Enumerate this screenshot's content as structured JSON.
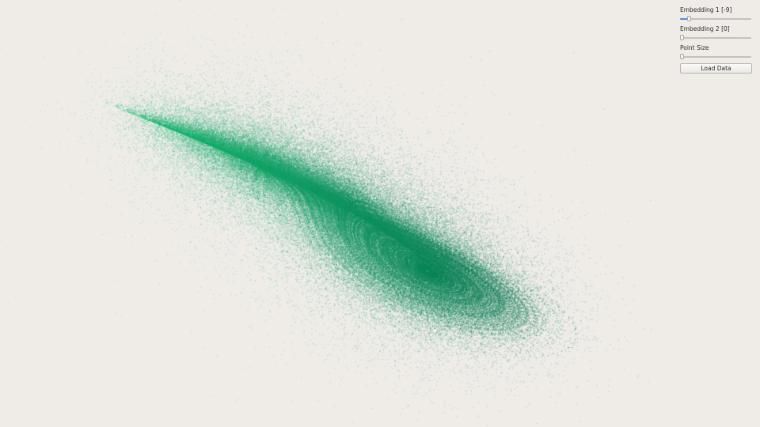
{
  "controls": {
    "embedding1": {
      "label": "Embedding 1 [-9]",
      "value_fraction": 0.1
    },
    "embedding2": {
      "label": "Embedding 2 [0]",
      "value_fraction": 0.0
    },
    "point_size": {
      "label": "Point Size",
      "value_fraction": 0.0
    },
    "load_button": {
      "label": "Load Data"
    }
  },
  "plot": {
    "color_light": "#22c07a",
    "color_dark": "#0d7a55",
    "background": "#efece8"
  }
}
